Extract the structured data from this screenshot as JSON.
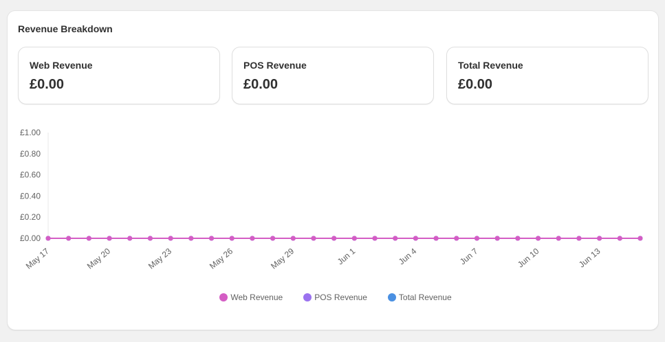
{
  "card": {
    "title": "Revenue Breakdown"
  },
  "stats": [
    {
      "label": "Web Revenue",
      "value": "£0.00"
    },
    {
      "label": "POS Revenue",
      "value": "£0.00"
    },
    {
      "label": "Total Revenue",
      "value": "£0.00"
    }
  ],
  "colors": {
    "web": "#d45dc4",
    "pos": "#9b72ef",
    "total": "#4a90e2",
    "grid_axis": "#e8e8e8"
  },
  "chart_data": {
    "type": "line",
    "x": [
      "May 17",
      "May 18",
      "May 19",
      "May 20",
      "May 21",
      "May 22",
      "May 23",
      "May 24",
      "May 25",
      "May 26",
      "May 27",
      "May 28",
      "May 29",
      "May 30",
      "May 31",
      "Jun 1",
      "Jun 2",
      "Jun 3",
      "Jun 4",
      "Jun 5",
      "Jun 6",
      "Jun 7",
      "Jun 8",
      "Jun 9",
      "Jun 10",
      "Jun 11",
      "Jun 12",
      "Jun 13",
      "Jun 14",
      "Jun 15"
    ],
    "x_tick_labels": [
      "May 17",
      "May 20",
      "May 23",
      "May 26",
      "May 29",
      "Jun 1",
      "Jun 4",
      "Jun 7",
      "Jun 10",
      "Jun 13"
    ],
    "y_tick_labels": [
      "£1.00",
      "£0.80",
      "£0.60",
      "£0.40",
      "£0.20",
      "£0.00"
    ],
    "ylim": [
      0,
      1
    ],
    "series": [
      {
        "name": "Web Revenue",
        "color": "#d45dc4",
        "values": [
          0,
          0,
          0,
          0,
          0,
          0,
          0,
          0,
          0,
          0,
          0,
          0,
          0,
          0,
          0,
          0,
          0,
          0,
          0,
          0,
          0,
          0,
          0,
          0,
          0,
          0,
          0,
          0,
          0,
          0
        ]
      },
      {
        "name": "POS Revenue",
        "color": "#9b72ef",
        "values": [
          0,
          0,
          0,
          0,
          0,
          0,
          0,
          0,
          0,
          0,
          0,
          0,
          0,
          0,
          0,
          0,
          0,
          0,
          0,
          0,
          0,
          0,
          0,
          0,
          0,
          0,
          0,
          0,
          0,
          0
        ]
      },
      {
        "name": "Total Revenue",
        "color": "#4a90e2",
        "values": [
          0,
          0,
          0,
          0,
          0,
          0,
          0,
          0,
          0,
          0,
          0,
          0,
          0,
          0,
          0,
          0,
          0,
          0,
          0,
          0,
          0,
          0,
          0,
          0,
          0,
          0,
          0,
          0,
          0,
          0
        ]
      }
    ],
    "legend_position": "bottom-center",
    "grid": false
  }
}
